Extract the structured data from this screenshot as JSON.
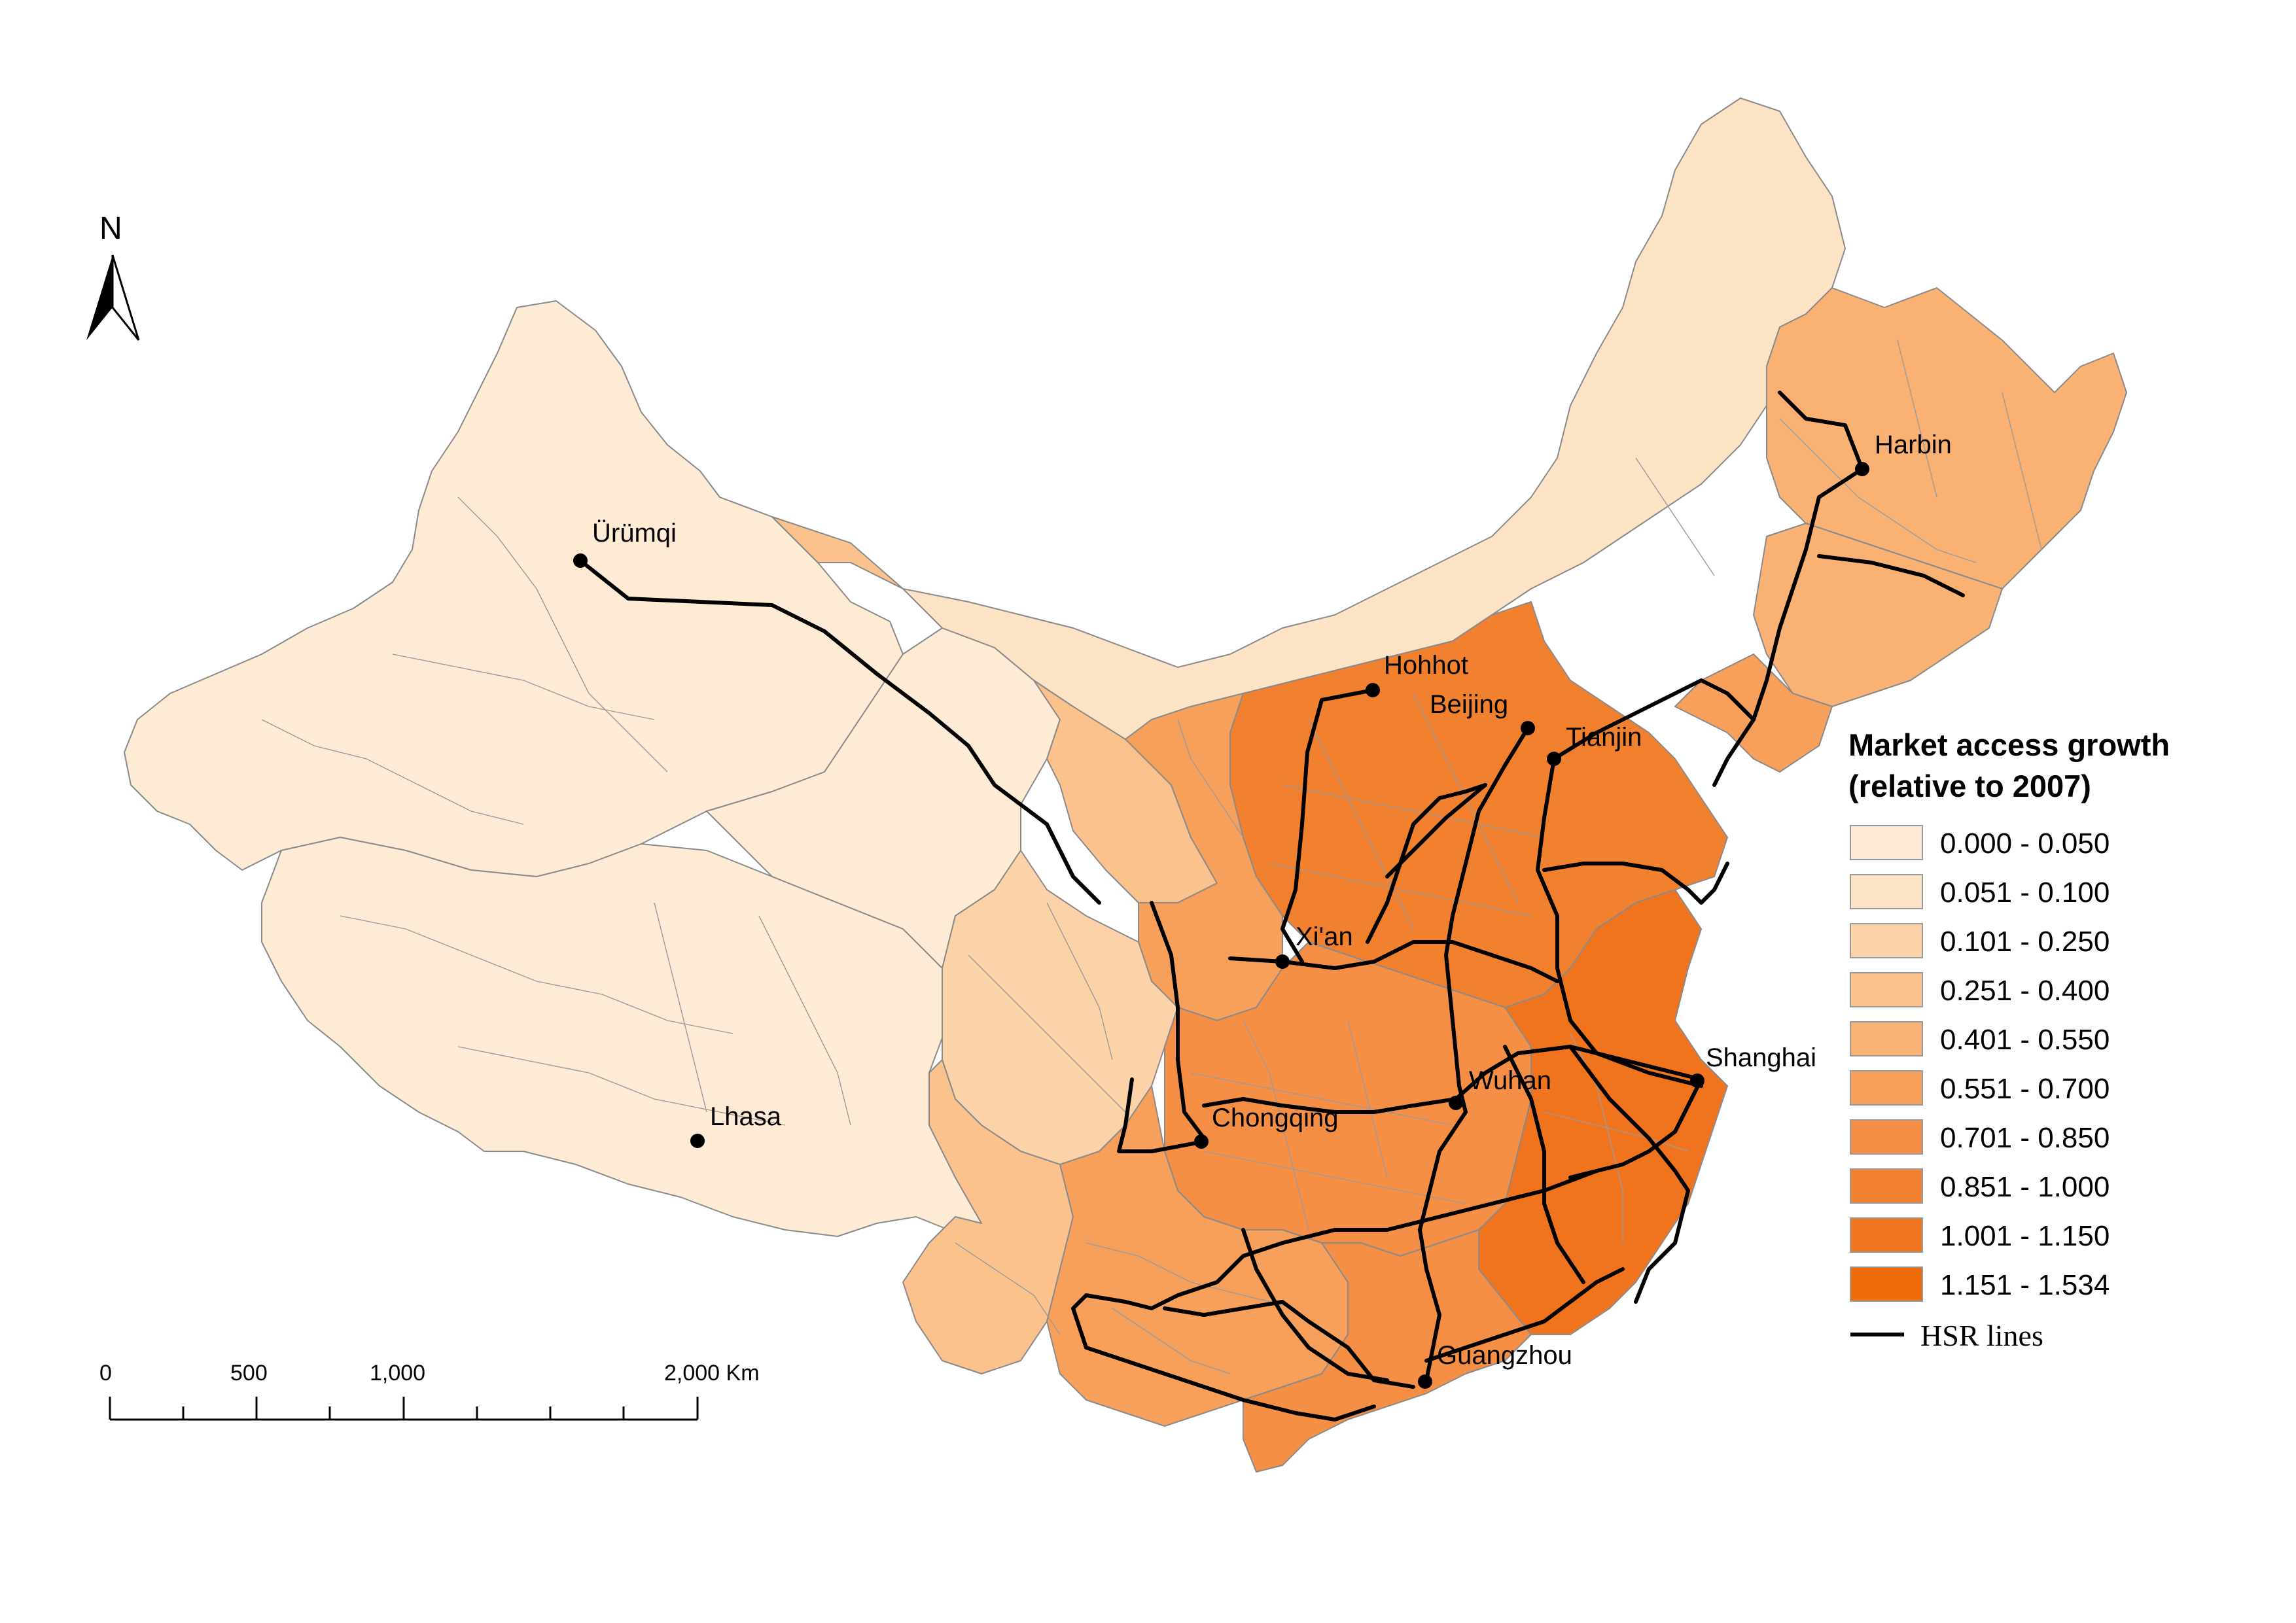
{
  "map": {
    "title": "Market access growth (relative to 2007)",
    "legend": {
      "title_line1": "Market access growth",
      "title_line2": "(relative to 2007)",
      "classes": [
        {
          "label": "0.000 - 0.050",
          "color": "#fdebd6"
        },
        {
          "label": "0.051 - 0.100",
          "color": "#fde3c6"
        },
        {
          "label": "0.101 - 0.250",
          "color": "#fcd3a8"
        },
        {
          "label": "0.251 - 0.400",
          "color": "#fbc28d"
        },
        {
          "label": "0.401 - 0.550",
          "color": "#f9b273"
        },
        {
          "label": "0.551 - 0.700",
          "color": "#f7a05c"
        },
        {
          "label": "0.701 - 0.850",
          "color": "#f48f45"
        },
        {
          "label": "0.851 - 1.000",
          "color": "#f2812f"
        },
        {
          "label": "1.001 - 1.150",
          "color": "#f0741d"
        },
        {
          "label": "1.151 - 1.534",
          "color": "#ee6a0a"
        }
      ],
      "line_label": "HSR lines"
    },
    "north_arrow": "N",
    "scale_bar": {
      "labels": [
        "0",
        "500",
        "1,000",
        "2,000 Km"
      ]
    },
    "cities": [
      {
        "key": "urumqi",
        "name": "Ürümqi"
      },
      {
        "key": "lhasa",
        "name": "Lhasa"
      },
      {
        "key": "hohhot",
        "name": "Hohhot"
      },
      {
        "key": "beijing",
        "name": "Beijing"
      },
      {
        "key": "tianjin",
        "name": "Tianjin"
      },
      {
        "key": "harbin",
        "name": "Harbin"
      },
      {
        "key": "xian",
        "name": "Xi'an"
      },
      {
        "key": "chongqing",
        "name": "Chongqing"
      },
      {
        "key": "wuhan",
        "name": "Wuhan"
      },
      {
        "key": "shanghai",
        "name": "Shanghai"
      },
      {
        "key": "guangzhou",
        "name": "Guangzhou"
      }
    ]
  }
}
